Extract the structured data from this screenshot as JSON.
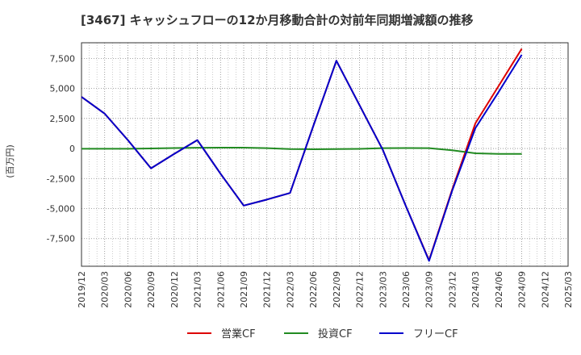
{
  "chart_data": {
    "type": "line",
    "title": "[3467]  キャッシュフローの12か月移動合計の対前年同期増減額の推移",
    "ylabel": "(百万円)",
    "xlabel": "",
    "ylim": [
      -9800,
      8800
    ],
    "yticks": [
      7500,
      5000,
      2500,
      0,
      -2500,
      -5000,
      -7500
    ],
    "ytick_labels": [
      "7,500",
      "5,000",
      "2,500",
      "0",
      "-2,500",
      "-5,000",
      "-7,500"
    ],
    "x": [
      "2019/12",
      "2020/03",
      "2020/06",
      "2020/09",
      "2020/12",
      "2021/03",
      "2021/06",
      "2021/09",
      "2021/12",
      "2022/03",
      "2022/06",
      "2022/09",
      "2022/12",
      "2023/03",
      "2023/06",
      "2023/09",
      "2023/12",
      "2024/03",
      "2024/06",
      "2024/09",
      "2024/12",
      "2025/03"
    ],
    "series": [
      {
        "name": "営業CF",
        "color": "#dd0000",
        "values": [
          4300,
          2900,
          700,
          -1650,
          -450,
          700,
          -2100,
          -4750,
          -4250,
          -3700,
          1850,
          7300,
          3600,
          -100,
          -4800,
          -9300,
          -3400,
          2100,
          5200,
          8300,
          null,
          null
        ]
      },
      {
        "name": "投資CF",
        "color": "#228b22",
        "values": [
          -20,
          -20,
          -20,
          0,
          40,
          60,
          70,
          70,
          30,
          -50,
          -60,
          -50,
          -30,
          30,
          40,
          30,
          -150,
          -400,
          -450,
          -450,
          null,
          null
        ]
      },
      {
        "name": "フリーCF",
        "color": "#0000cc",
        "values": [
          4300,
          2900,
          700,
          -1650,
          -450,
          700,
          -2100,
          -4750,
          -4250,
          -3700,
          1850,
          7300,
          3600,
          -100,
          -4800,
          -9350,
          -3500,
          1700,
          4700,
          7800,
          null,
          null
        ]
      }
    ]
  }
}
